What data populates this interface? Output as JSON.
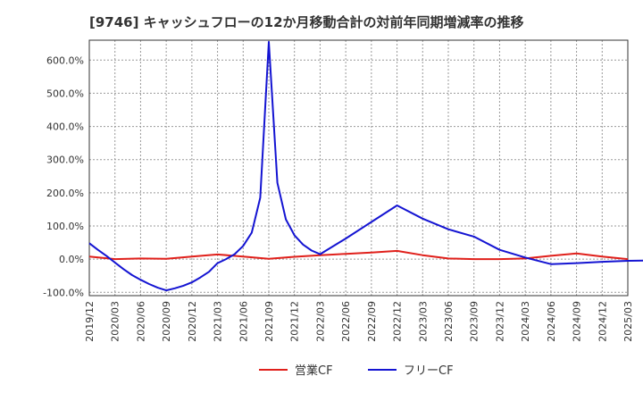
{
  "chart_data": {
    "type": "line",
    "title": "[9746]  キャッシュフローの12か月移動合計の対前年同期増減率の推移",
    "xlabel": "",
    "ylabel": "",
    "ylim": [
      -110,
      660
    ],
    "y_ticks": [
      -100,
      0,
      100,
      200,
      300,
      400,
      500,
      600
    ],
    "y_tick_labels": [
      "-100.0%",
      "0.0%",
      "100.0%",
      "200.0%",
      "300.0%",
      "400.0%",
      "500.0%",
      "600.0%"
    ],
    "x_tick_labels": [
      "2019/12",
      "2020/03",
      "2020/06",
      "2020/09",
      "2020/12",
      "2021/03",
      "2021/06",
      "2021/09",
      "2021/12",
      "2022/03",
      "2022/06",
      "2022/09",
      "2022/12",
      "2023/03",
      "2023/06",
      "2023/09",
      "2023/12",
      "2024/03",
      "2024/06",
      "2024/09",
      "2024/12",
      "2025/03"
    ],
    "grid": true,
    "legend_position": "bottom-center",
    "series": [
      {
        "name": "営業CF",
        "color": "#e0201b",
        "points": [
          [
            0,
            8
          ],
          [
            3,
            0
          ],
          [
            6,
            2
          ],
          [
            9,
            1
          ],
          [
            12,
            8
          ],
          [
            15,
            14
          ],
          [
            18,
            8
          ],
          [
            21,
            1
          ],
          [
            24,
            7
          ],
          [
            27,
            12
          ],
          [
            30,
            16
          ],
          [
            33,
            20
          ],
          [
            36,
            25
          ],
          [
            39,
            12
          ],
          [
            42,
            2
          ],
          [
            45,
            0
          ],
          [
            48,
            0
          ],
          [
            51,
            2
          ],
          [
            54,
            10
          ],
          [
            57,
            17
          ],
          [
            60,
            8
          ],
          [
            63,
            0
          ]
        ]
      },
      {
        "name": "フリーCF",
        "color": "#1414d2",
        "points": [
          [
            0,
            48
          ],
          [
            1,
            28
          ],
          [
            2,
            10
          ],
          [
            3,
            -10
          ],
          [
            4,
            -30
          ],
          [
            5,
            -48
          ],
          [
            6,
            -62
          ],
          [
            7,
            -75
          ],
          [
            8,
            -86
          ],
          [
            9,
            -94
          ],
          [
            10,
            -88
          ],
          [
            11,
            -80
          ],
          [
            12,
            -70
          ],
          [
            13,
            -55
          ],
          [
            14,
            -38
          ],
          [
            15,
            -12
          ],
          [
            16,
            0
          ],
          [
            17,
            15
          ],
          [
            18,
            40
          ],
          [
            19,
            80
          ],
          [
            20,
            185
          ],
          [
            21,
            655
          ],
          [
            22,
            230
          ],
          [
            23,
            120
          ],
          [
            24,
            72
          ],
          [
            25,
            44
          ],
          [
            26,
            26
          ],
          [
            27,
            15
          ],
          [
            30,
            62
          ],
          [
            33,
            112
          ],
          [
            36,
            162
          ],
          [
            39,
            122
          ],
          [
            42,
            90
          ],
          [
            45,
            68
          ],
          [
            48,
            28
          ],
          [
            51,
            5
          ],
          [
            54,
            -15
          ],
          [
            57,
            -12
          ],
          [
            60,
            -8
          ],
          [
            63,
            -5
          ],
          [
            66,
            -4
          ]
        ]
      }
    ]
  }
}
